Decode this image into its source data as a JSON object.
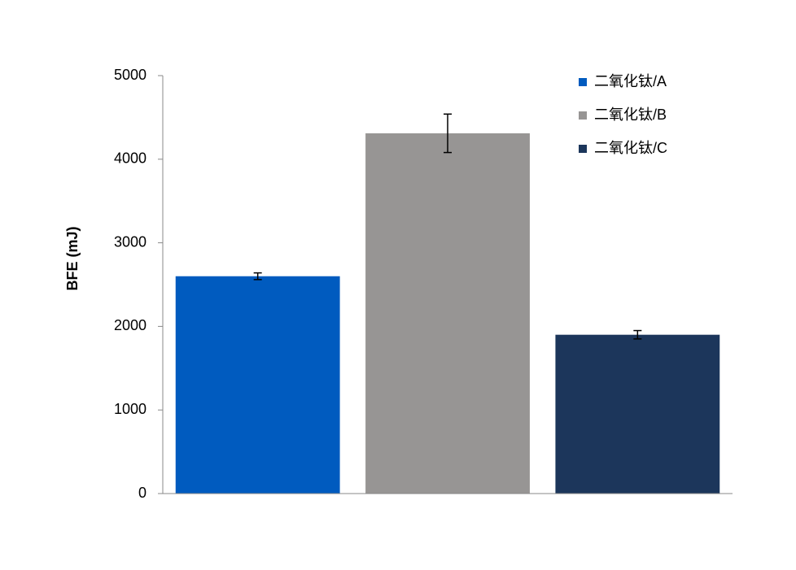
{
  "chart_data": {
    "type": "bar",
    "y_label": "BFE (mJ)",
    "series": [
      {
        "name": "二氧化钛/A",
        "color": "#005bbf",
        "values": [
          2600
        ],
        "errors": [
          40
        ]
      },
      {
        "name": "二氧化钛/B",
        "color": "#979594",
        "values": [
          4310
        ],
        "errors": [
          230
        ]
      },
      {
        "name": "二氧化钛/C",
        "color": "#1c365b",
        "values": [
          1900
        ],
        "errors": [
          50
        ]
      }
    ],
    "ylim": [
      0,
      5000
    ],
    "yticks": [
      0,
      1000,
      2000,
      3000,
      4000,
      5000
    ],
    "grid": false,
    "legend": "top-right"
  }
}
